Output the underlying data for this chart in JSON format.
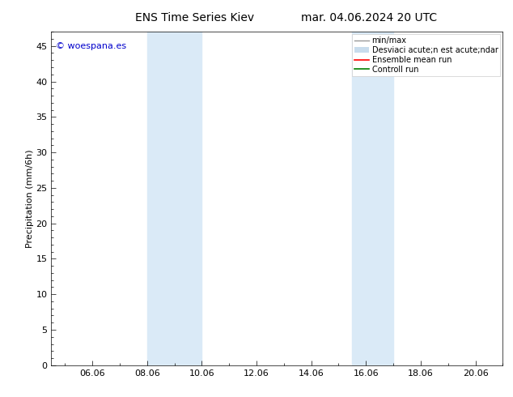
{
  "title": "ENS Time Series Kiev",
  "title_right": "mar. 04.06.2024 20 UTC",
  "ylabel": "Precipitation (mm/6h)",
  "watermark": "© woespana.es",
  "xlim_left": 4.5,
  "xlim_right": 21.0,
  "ylim_bottom": 0,
  "ylim_top": 47,
  "yticks": [
    0,
    5,
    10,
    15,
    20,
    25,
    30,
    35,
    40,
    45
  ],
  "xtick_labels": [
    "06.06",
    "08.06",
    "10.06",
    "12.06",
    "14.06",
    "16.06",
    "18.06",
    "20.06"
  ],
  "xtick_positions": [
    6,
    8,
    10,
    12,
    14,
    16,
    18,
    20
  ],
  "shaded_bands": [
    {
      "x_start": 8.0,
      "x_end": 10.0
    },
    {
      "x_start": 15.5,
      "x_end": 17.0
    }
  ],
  "band_color": "#daeaf7",
  "background_color": "#ffffff",
  "legend_labels": [
    "min/max",
    "Desviaci acute;n est acute;ndar",
    "Ensemble mean run",
    "Controll run"
  ],
  "legend_colors": [
    "#999999",
    "#c8dced",
    "#ff0000",
    "#008000"
  ],
  "title_fontsize": 10,
  "axis_label_fontsize": 8,
  "tick_fontsize": 8,
  "legend_fontsize": 7,
  "watermark_color": "#0000cc",
  "watermark_fontsize": 8
}
